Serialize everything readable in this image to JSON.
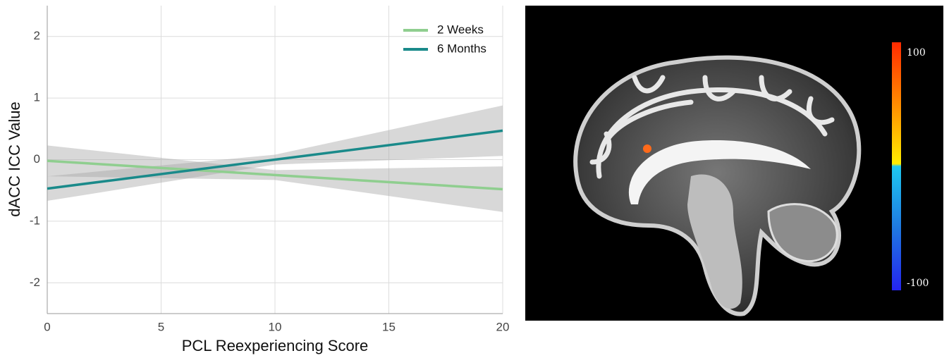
{
  "chart_data": {
    "type": "line",
    "x_label": "PCL Reexperiencing Score",
    "y_label": "dACC ICC Value",
    "x": [
      0,
      10,
      20
    ],
    "series": [
      {
        "name": "2 Weeks",
        "color": "#8fce8f",
        "values": [
          -0.02,
          -0.25,
          -0.48
        ],
        "lower": [
          -0.27,
          -0.33,
          -0.85
        ],
        "upper": [
          0.23,
          -0.17,
          -0.11
        ]
      },
      {
        "name": "6 Months",
        "color": "#1a8a8a",
        "values": [
          -0.47,
          0,
          0.47
        ],
        "lower": [
          -0.67,
          -0.08,
          0.06
        ],
        "upper": [
          -0.27,
          0.08,
          0.88
        ]
      }
    ],
    "xlim": [
      0,
      20
    ],
    "xticks": [
      0,
      5,
      10,
      15,
      20
    ],
    "ylim": [
      -2.5,
      2.5
    ],
    "yticks": [
      -2,
      -1,
      0,
      1,
      2
    ],
    "grid": true,
    "band_color": "#a9a9a9",
    "legend": "top-right"
  },
  "image": {
    "colorbar": {
      "max": 100,
      "min": -100
    }
  }
}
